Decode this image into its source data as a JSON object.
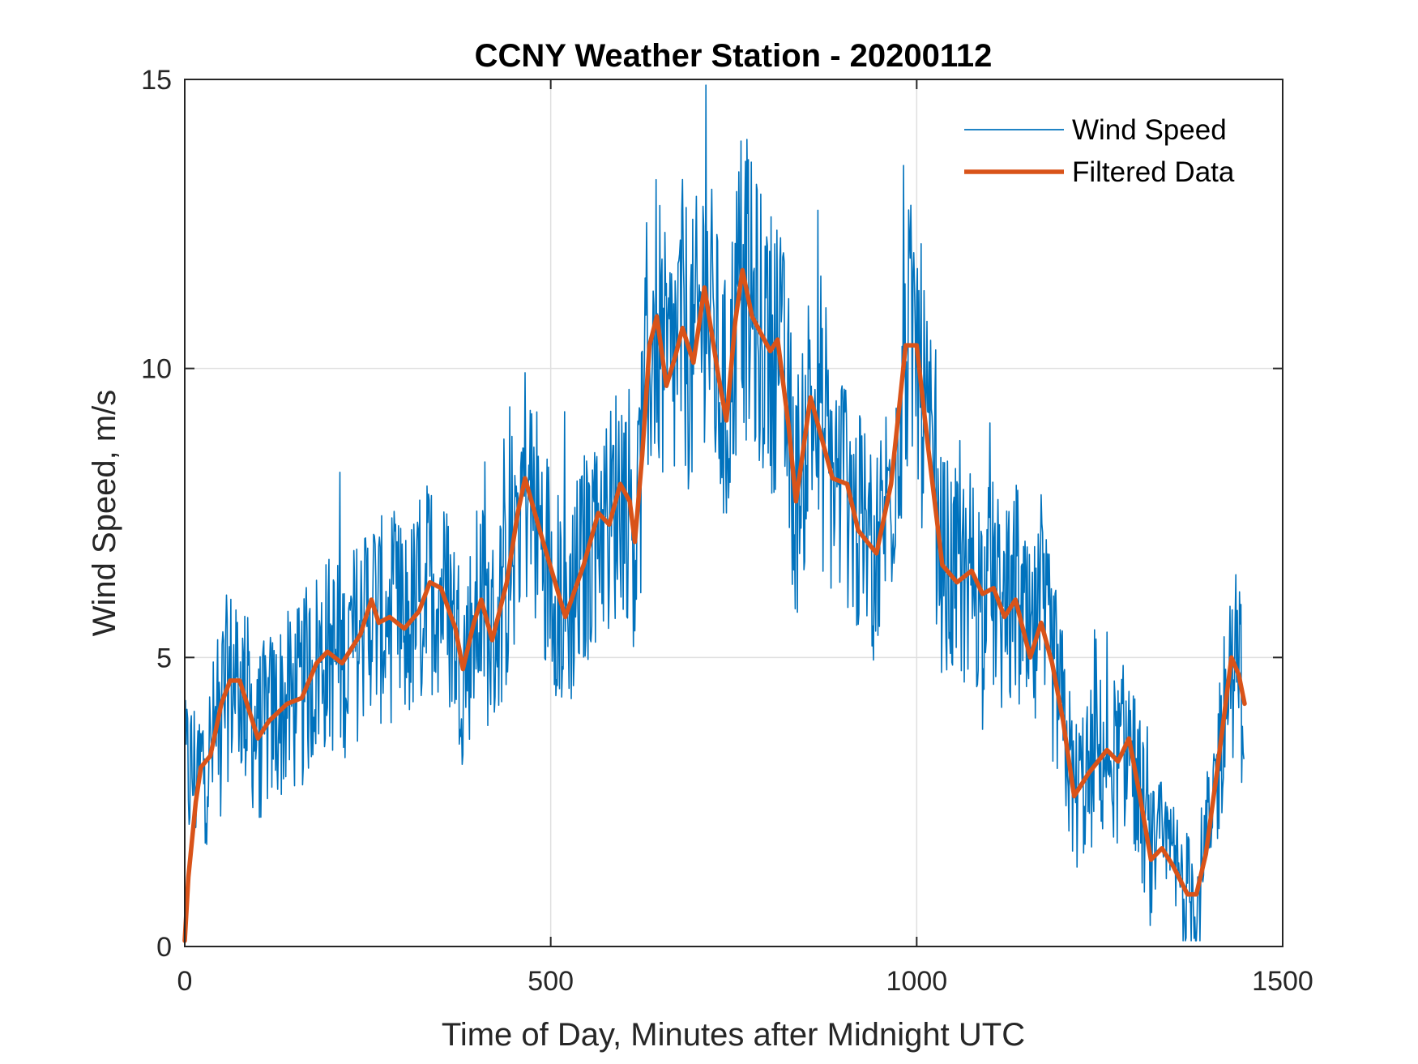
{
  "chart_data": {
    "type": "line",
    "title": "CCNY Weather Station - 20200112",
    "xlabel": "Time of Day, Minutes after Midnight UTC",
    "ylabel": "Wind Speed, m/s",
    "xlim": [
      0,
      1500
    ],
    "ylim": [
      0,
      15
    ],
    "xticks": [
      0,
      500,
      1000,
      1500
    ],
    "xtick_labels": [
      "0",
      "500",
      "1000",
      "1500"
    ],
    "yticks": [
      0,
      5,
      10,
      15
    ],
    "ytick_labels": [
      "0",
      "5",
      "10",
      "15"
    ],
    "grid": true,
    "legend_position": "top-right",
    "colors": {
      "wind_speed": "#0072BD",
      "filtered": "#D95319",
      "axes": "#262626",
      "grid": "#DFDFDF"
    },
    "series": [
      {
        "name": "Wind Speed",
        "style": "thin-line",
        "description": "raw 1-minute samples, noisy around the filtered trend",
        "noise_amplitude_ms": 1.8,
        "x_range": [
          0,
          1447
        ],
        "max_value": 14.9,
        "max_at_minute": 712,
        "min_value": 0.15,
        "min_at_minute": 1368
      },
      {
        "name": "Filtered Data",
        "style": "thick-line",
        "x": [
          0,
          5,
          15,
          22,
          35,
          50,
          62,
          75,
          85,
          100,
          115,
          140,
          160,
          180,
          195,
          215,
          240,
          255,
          265,
          280,
          300,
          320,
          335,
          350,
          370,
          380,
          395,
          405,
          420,
          440,
          455,
          465,
          485,
          520,
          545,
          565,
          580,
          595,
          608,
          615,
          625,
          635,
          645,
          658,
          670,
          680,
          695,
          710,
          730,
          740,
          752,
          762,
          775,
          800,
          810,
          825,
          835,
          845,
          855,
          870,
          885,
          905,
          920,
          945,
          965,
          985,
          1000,
          1015,
          1035,
          1055,
          1075,
          1090,
          1105,
          1120,
          1135,
          1155,
          1170,
          1185,
          1200,
          1215,
          1235,
          1260,
          1275,
          1290,
          1305,
          1320,
          1335,
          1350,
          1370,
          1382,
          1395,
          1410,
          1430,
          1440,
          1448
        ],
        "y": [
          0.1,
          1.2,
          2.5,
          3.1,
          3.3,
          4.2,
          4.6,
          4.6,
          4.2,
          3.6,
          3.9,
          4.2,
          4.3,
          4.9,
          5.1,
          4.9,
          5.4,
          6.0,
          5.6,
          5.7,
          5.5,
          5.8,
          6.3,
          6.2,
          5.5,
          4.8,
          5.6,
          6.0,
          5.3,
          6.3,
          7.5,
          8.1,
          7.2,
          5.7,
          6.6,
          7.5,
          7.3,
          8.0,
          7.7,
          7.0,
          8.5,
          10.4,
          10.9,
          9.7,
          10.2,
          10.7,
          10.1,
          11.4,
          9.8,
          9.1,
          10.8,
          11.7,
          10.9,
          10.3,
          10.5,
          9.0,
          7.7,
          8.6,
          9.5,
          8.8,
          8.1,
          8.0,
          7.2,
          6.8,
          8.0,
          10.4,
          10.4,
          8.7,
          6.6,
          6.3,
          6.5,
          6.1,
          6.2,
          5.7,
          6.0,
          5.0,
          5.6,
          4.9,
          3.9,
          2.6,
          3.0,
          3.4,
          3.2,
          3.6,
          2.6,
          1.5,
          1.7,
          1.4,
          0.9,
          0.9,
          1.6,
          3.0,
          5.0,
          4.7,
          4.2
        ]
      }
    ],
    "legend": [
      {
        "label": "Wind Speed",
        "series": 0
      },
      {
        "label": "Filtered Data",
        "series": 1
      }
    ]
  }
}
